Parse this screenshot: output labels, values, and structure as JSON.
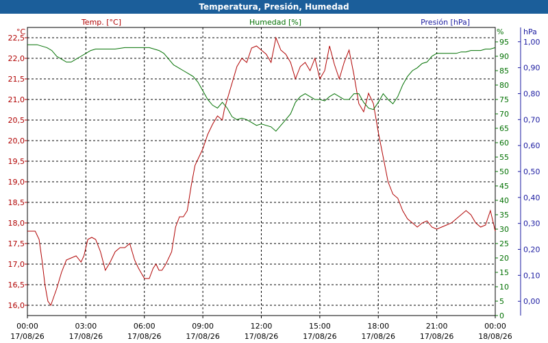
{
  "window": {
    "title": "Temperatura, Presión, Humedad"
  },
  "colors": {
    "temp": "#b00000",
    "hum": "#007000",
    "pres": "#1a1aa0",
    "title_bg": "#1b5e9a"
  },
  "chart_data": {
    "type": "line",
    "title": "Temperatura, Presión, Humedad",
    "grid": true,
    "legend": "top",
    "x_ticks": [
      {
        "time": "00:00",
        "date": "17/08/26"
      },
      {
        "time": "03:00",
        "date": "17/08/26"
      },
      {
        "time": "06:00",
        "date": "17/08/26"
      },
      {
        "time": "09:00",
        "date": "17/08/26"
      },
      {
        "time": "12:00",
        "date": "17/08/26"
      },
      {
        "time": "15:00",
        "date": "17/08/26"
      },
      {
        "time": "18:00",
        "date": "17/08/26"
      },
      {
        "time": "21:00",
        "date": "17/08/26"
      },
      {
        "time": "00:00",
        "date": "18/08/26"
      }
    ],
    "axes": {
      "temp": {
        "unit": "°C",
        "label": "Temp. [°C]",
        "range": [
          15.75,
          22.75
        ],
        "ticks": [
          "16,0",
          "16,5",
          "17,0",
          "17,5",
          "18,0",
          "18,5",
          "19,0",
          "19,5",
          "20,0",
          "20,5",
          "21,0",
          "21,5",
          "22,0",
          "22,5"
        ]
      },
      "hum": {
        "unit": "%",
        "label": "Humedad [%]",
        "range": [
          0,
          100
        ],
        "ticks": [
          "0",
          "5",
          "10",
          "15",
          "20",
          "25",
          "30",
          "35",
          "40",
          "45",
          "50",
          "55",
          "60",
          "65",
          "70",
          "75",
          "80",
          "85",
          "90",
          "95"
        ]
      },
      "pres": {
        "unit": "hPa",
        "label": "Presión [hPa]",
        "range": [
          -0.055,
          1.055
        ],
        "ticks": [
          "0,00",
          "0,10",
          "0,20",
          "0,30",
          "0,40",
          "0,50",
          "0,60",
          "0,70",
          "0,80",
          "0,90",
          "1,00"
        ]
      }
    },
    "series": [
      {
        "name": "Temp. [°C]",
        "axis": "temp",
        "color": "#b00000",
        "x": [
          0,
          0.4,
          0.6,
          0.75,
          0.9,
          1.05,
          1.2,
          1.35,
          1.5,
          1.75,
          2,
          2.25,
          2.5,
          2.75,
          2.9,
          3.1,
          3.3,
          3.5,
          3.75,
          4,
          4.25,
          4.5,
          4.75,
          5,
          5.25,
          5.5,
          5.7,
          6,
          6.25,
          6.45,
          6.6,
          6.75,
          6.9,
          7.1,
          7.4,
          7.6,
          7.8,
          8,
          8.2,
          8.4,
          8.6,
          8.8,
          9,
          9.25,
          9.5,
          9.75,
          10,
          10.1,
          10.25,
          10.5,
          10.75,
          11,
          11.25,
          11.5,
          11.75,
          12,
          12.25,
          12.5,
          12.75,
          13,
          13.25,
          13.5,
          13.75,
          14,
          14.25,
          14.5,
          14.75,
          15,
          15.25,
          15.5,
          15.75,
          16,
          16.25,
          16.5,
          16.75,
          17,
          17.25,
          17.5,
          17.75,
          18,
          18.25,
          18.5,
          18.75,
          19,
          19.25,
          19.5,
          19.75,
          20,
          20.25,
          20.5,
          20.75,
          21,
          21.25,
          21.5,
          21.75,
          22,
          22.25,
          22.5,
          22.75,
          23,
          23.25,
          23.5,
          23.75,
          24
        ],
        "values": [
          17.8,
          17.8,
          17.6,
          17.1,
          16.5,
          16.1,
          16.0,
          16.2,
          16.4,
          16.8,
          17.1,
          17.15,
          17.2,
          17.05,
          17.2,
          17.6,
          17.65,
          17.6,
          17.3,
          16.85,
          17.05,
          17.3,
          17.4,
          17.4,
          17.5,
          17.1,
          16.9,
          16.65,
          16.65,
          16.9,
          17.0,
          16.85,
          16.85,
          17.0,
          17.3,
          17.9,
          18.15,
          18.15,
          18.3,
          18.9,
          19.4,
          19.6,
          19.8,
          20.15,
          20.4,
          20.6,
          20.5,
          20.75,
          21.0,
          21.4,
          21.8,
          22.0,
          21.9,
          22.25,
          22.3,
          22.2,
          22.1,
          21.9,
          22.5,
          22.2,
          22.1,
          21.9,
          21.5,
          21.8,
          21.9,
          21.7,
          22.0,
          21.5,
          21.7,
          22.3,
          21.85,
          21.5,
          21.9,
          22.2,
          21.6,
          20.9,
          20.7,
          21.15,
          20.9,
          20.2,
          19.6,
          19.0,
          18.7,
          18.6,
          18.3,
          18.1,
          18.0,
          17.9,
          18.0,
          18.05,
          17.9,
          17.85,
          17.9,
          17.95,
          18.0,
          18.1,
          18.2,
          18.3,
          18.2,
          18.0,
          17.9,
          17.95,
          18.3,
          17.8
        ]
      },
      {
        "name": "Humedad [%]",
        "axis": "hum",
        "color": "#007000",
        "x": [
          0,
          0.5,
          1,
          1.25,
          1.5,
          1.75,
          2,
          2.25,
          2.5,
          2.75,
          3,
          3.25,
          3.5,
          3.75,
          4,
          4.5,
          5,
          5.5,
          6,
          6.25,
          6.5,
          6.75,
          7,
          7.25,
          7.5,
          7.75,
          8,
          8.25,
          8.5,
          8.75,
          9,
          9.25,
          9.5,
          9.75,
          10,
          10.25,
          10.5,
          10.75,
          11,
          11.25,
          11.5,
          11.75,
          12,
          12.25,
          12.5,
          12.75,
          13,
          13.25,
          13.5,
          13.75,
          14,
          14.25,
          14.5,
          14.75,
          15,
          15.25,
          15.5,
          15.75,
          16,
          16.25,
          16.5,
          16.75,
          17,
          17.25,
          17.5,
          17.75,
          18,
          18.25,
          18.5,
          18.75,
          19,
          19.25,
          19.5,
          19.75,
          20,
          20.25,
          20.5,
          20.75,
          21,
          21.25,
          21.5,
          21.75,
          22,
          22.25,
          22.5,
          22.75,
          23,
          23.25,
          23.5,
          23.75,
          24
        ],
        "values": [
          94,
          94,
          93,
          92,
          90,
          89,
          88,
          88,
          89,
          90,
          91,
          92,
          92.5,
          92.5,
          92.5,
          92.5,
          93,
          93,
          93,
          93,
          92.5,
          92,
          91,
          89,
          87,
          86,
          85,
          84,
          83,
          81,
          78,
          75,
          73,
          72,
          74,
          72,
          69,
          68,
          68.5,
          68,
          67,
          66,
          66.5,
          66,
          65.5,
          64,
          66,
          68,
          70,
          74,
          76,
          77,
          76,
          75,
          75,
          74.5,
          76,
          77,
          76,
          75,
          75,
          77,
          77,
          74,
          72,
          71.5,
          74,
          77,
          75,
          73.5,
          76,
          80,
          83,
          85,
          86,
          87.5,
          88,
          90,
          91,
          91,
          91,
          91,
          91,
          91.5,
          91.5,
          92,
          92,
          92,
          92.5,
          92.5,
          93
        ]
      },
      {
        "name": "Presión [hPa]",
        "axis": "pres",
        "color": "#1a1aa0",
        "x": [],
        "values": []
      }
    ]
  }
}
